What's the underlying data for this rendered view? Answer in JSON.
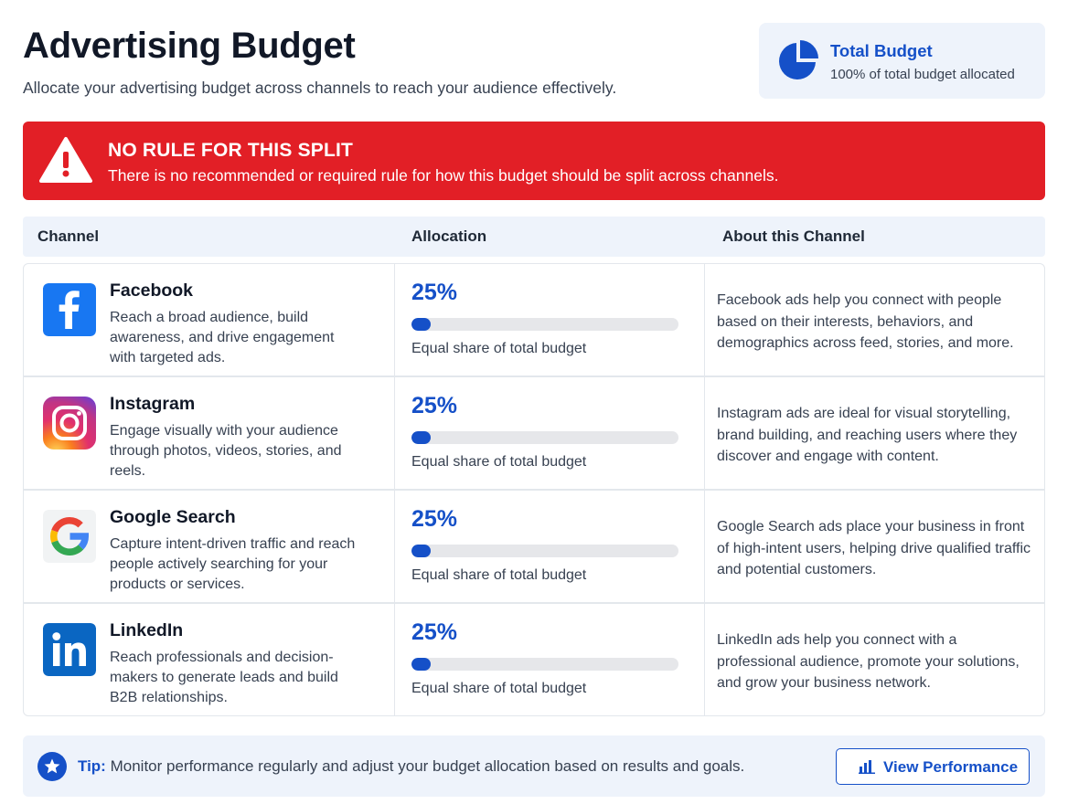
{
  "header": {
    "title": "Advertising Budget",
    "subtitle": "Allocate your advertising budget across channels to reach your audience effectively."
  },
  "total_budget": {
    "title": "Total Budget",
    "subtitle": "100% of total budget allocated",
    "icon": "pie-chart-icon",
    "allocated_fraction": 1.0
  },
  "alert": {
    "title": "NO RULE FOR THIS SPLIT",
    "message": "There is no recommended or required rule for how this budget should be split across channels.",
    "icon": "warning-icon",
    "color": "#e21f26"
  },
  "table": {
    "columns": [
      "Channel",
      "Allocation",
      "About this Channel"
    ],
    "rows": [
      {
        "name": "Facebook",
        "icon": "facebook-icon",
        "description": "Reach a broad audience, build awareness, and drive engagement with targeted ads.",
        "allocation_label": "25%",
        "allocation_fraction": 0.25,
        "allocation_note": "Equal share of total budget",
        "about": "Facebook ads help you connect with people based on their interests, behaviors, and demographics across feed, stories, and more."
      },
      {
        "name": "Instagram",
        "icon": "instagram-icon",
        "description": "Engage visually with your audience through photos, videos, stories, and reels.",
        "allocation_label": "25%",
        "allocation_fraction": 0.25,
        "allocation_note": "Equal share of total budget",
        "about": "Instagram ads are ideal for visual storytelling, brand building, and reaching users where they discover and engage with content."
      },
      {
        "name": "Google Search",
        "icon": "google-icon",
        "description": "Capture intent-driven traffic and reach people actively searching for your products or services.",
        "allocation_label": "25%",
        "allocation_fraction": 0.25,
        "allocation_note": "Equal share of total budget",
        "about": "Google Search ads place your business in front of high-intent users, helping drive qualified traffic and potential customers."
      },
      {
        "name": "LinkedIn",
        "icon": "linkedin-icon",
        "description": "Reach professionals and decision-makers to generate leads and build B2B relationships.",
        "allocation_label": "25%",
        "allocation_fraction": 0.25,
        "allocation_note": "Equal share of total budget",
        "about": "LinkedIn ads help you connect with a professional audience, promote your solutions, and grow your business network."
      }
    ]
  },
  "tip": {
    "label": "Tip:",
    "text": "Monitor performance regularly and adjust your budget allocation based on results and goals.",
    "icon": "star-icon"
  },
  "actions": {
    "view_performance_label": "View Performance",
    "view_performance_icon": "bar-chart-icon"
  },
  "colors": {
    "accent": "#1550c8",
    "alert": "#e21f26",
    "panel": "#eef3fb"
  }
}
